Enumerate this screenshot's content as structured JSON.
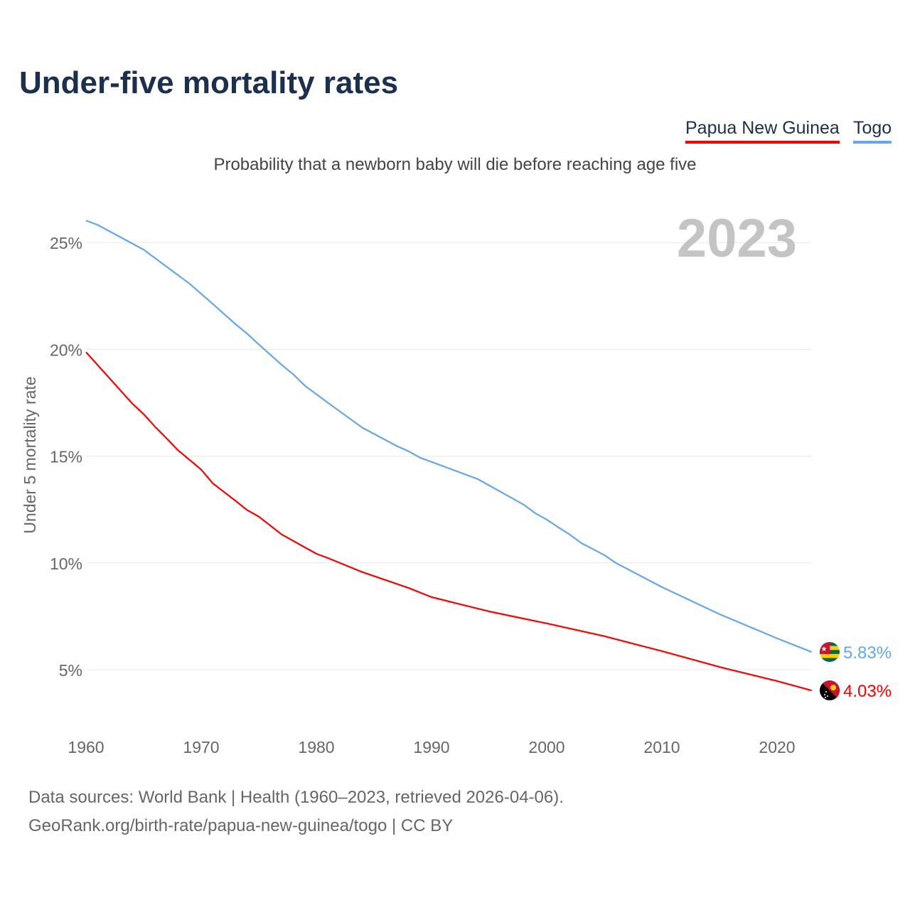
{
  "header": {
    "title": "Under-five mortality rates",
    "subtitle": "Probability that a newborn baby will die before reaching age five"
  },
  "legend": [
    {
      "label": "Papua New Guinea",
      "color": "#ff0000"
    },
    {
      "label": "Togo",
      "color": "#62a8ea"
    }
  ],
  "footer": {
    "line1": "Data sources: World Bank | Health (1960–2023, retrieved 2026-04-06).",
    "line2": "GeoRank.org/birth-rate/papua-new-guinea/togo | CC BY"
  },
  "chart_data": {
    "type": "line",
    "title": "Under-five mortality rates",
    "ylabel": "Under 5 mortality rate",
    "xlabel": "",
    "year_label": "2023",
    "xlim": [
      1960,
      2023
    ],
    "ylim": [
      2,
      27
    ],
    "xticks": [
      1960,
      1970,
      1980,
      1990,
      2000,
      2010,
      2020
    ],
    "yticks": [
      5,
      10,
      15,
      20,
      25
    ],
    "ytick_labels": [
      "5%",
      "10%",
      "15%",
      "20%",
      "25%"
    ],
    "grid": true,
    "legend_position": "top-right",
    "series": [
      {
        "name": "Togo",
        "color": "#62a8ea",
        "end_label": "5.83%",
        "flag": "togo-flag",
        "x": [
          1960,
          1961,
          1965,
          1969,
          1970,
          1971,
          1973,
          1974,
          1975,
          1977,
          1978,
          1979,
          1980,
          1981,
          1984,
          1987,
          1988,
          1989,
          1994,
          1998,
          1999,
          2000,
          2001,
          2002,
          2003,
          2005,
          2006,
          2010,
          2015,
          2020,
          2023
        ],
        "values": [
          26.03,
          25.83,
          24.67,
          23.07,
          22.6,
          22.13,
          21.17,
          20.73,
          20.23,
          19.27,
          18.83,
          18.3,
          17.9,
          17.5,
          16.33,
          15.47,
          15.23,
          14.93,
          13.93,
          12.73,
          12.33,
          12.03,
          11.67,
          11.33,
          10.93,
          10.37,
          10.0,
          8.87,
          7.6,
          6.47,
          5.83
        ]
      },
      {
        "name": "Papua New Guinea",
        "color": "#ff0000",
        "end_label": "4.03%",
        "flag": "papua-new-guinea-flag",
        "x": [
          1960,
          1964,
          1965,
          1966,
          1967,
          1968,
          1970,
          1971,
          1973,
          1974,
          1975,
          1977,
          1980,
          1981,
          1984,
          1988,
          1990,
          1995,
          2000,
          2005,
          2010,
          2015,
          2020,
          2023
        ],
        "values": [
          19.87,
          17.47,
          16.97,
          16.37,
          15.83,
          15.27,
          14.37,
          13.73,
          12.9,
          12.47,
          12.17,
          11.33,
          10.43,
          10.23,
          9.57,
          8.83,
          8.4,
          7.73,
          7.17,
          6.57,
          5.87,
          5.13,
          4.47,
          4.03
        ]
      }
    ]
  }
}
